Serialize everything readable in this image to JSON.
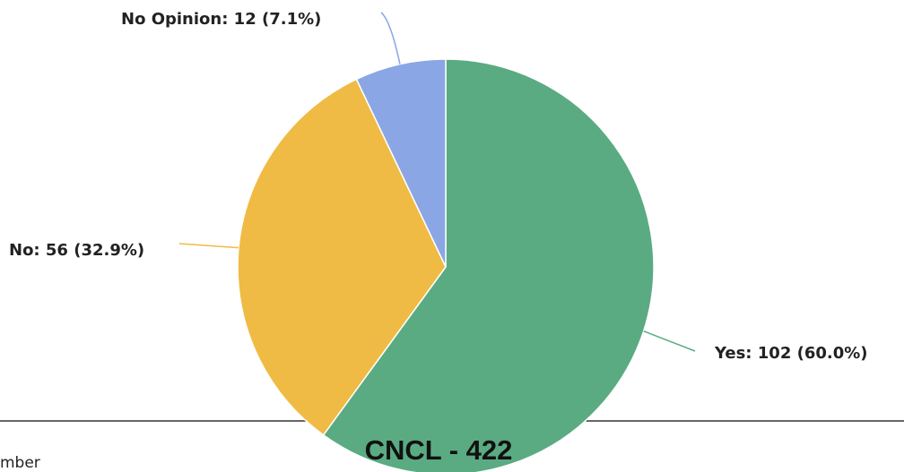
{
  "chart_data": {
    "type": "pie",
    "values": [
      102,
      56,
      12
    ],
    "value_labels": [
      "Yes: 102 (60.0%)",
      "No: 56 (32.9%)",
      "No Opinion: 12 (7.1%)"
    ],
    "colors": [
      "#5aab82",
      "#f0bb44",
      "#8ba6e4"
    ]
  },
  "footer": {
    "page_label": "CNCL - 422",
    "fragment": "mber"
  }
}
